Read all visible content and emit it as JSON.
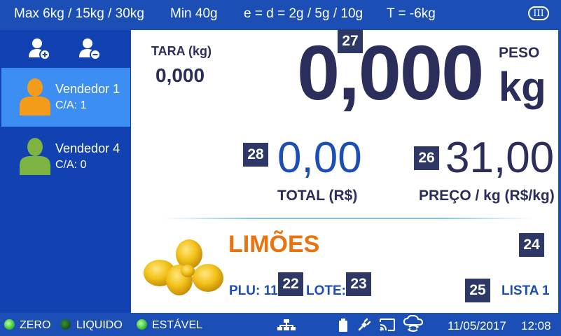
{
  "topbar": {
    "max_capacity": "Max 6kg / 15kg / 30kg",
    "min_capacity": "Min 40g",
    "division": "e = d = 2g / 5g / 10g",
    "tare_limit": "T = -6kg",
    "accuracy_class": "III"
  },
  "sidebar": {
    "add_seller_icon": "user-add-icon",
    "remove_seller_icon": "user-remove-icon",
    "sellers": [
      {
        "name": "Vendedor 1",
        "account": "C/A: 1",
        "color": "#f39c1a",
        "active": true
      },
      {
        "name": "Vendedor 4",
        "account": "C/A: 0",
        "color": "#7cb342",
        "active": false
      }
    ]
  },
  "weighing": {
    "tare_label": "TARA (kg)",
    "tare_value": "0,000",
    "weight_value": "0,000",
    "weight_label": "PESO",
    "weight_unit": "kg",
    "total_value": "0,00",
    "total_label": "TOTAL (R$)",
    "price_value": "31,00",
    "price_label": "PREÇO / kg (R$/kg)"
  },
  "tags": {
    "weight": "27",
    "total": "28",
    "price": "26",
    "plu": "22",
    "lote": "23",
    "product": "24",
    "list": "25"
  },
  "product": {
    "name": "LIMÕES",
    "plu_label": "PLU: 11",
    "lote_label": "LOTE:",
    "list_label": "LISTA 1",
    "image": "lemons-image"
  },
  "status": {
    "zero": "ZERO",
    "liquido": "LIQUIDO",
    "estavel": "ESTÁVEL",
    "zero_on": true,
    "liquido_on": false,
    "estavel_on": true,
    "icons": [
      "network-icon",
      "battery-icon",
      "power-plug-icon",
      "cast-icon",
      "cloud-sync-icon"
    ],
    "date": "11/05/2017",
    "time": "12:08"
  },
  "colors": {
    "bar_blue": "#1b4fb5",
    "sidebar_blue": "#1242b1",
    "active_seller": "#3c8ef2",
    "navy_text": "#2b2d5a",
    "product_orange": "#e8730f",
    "tag_bg": "#2d3866"
  }
}
